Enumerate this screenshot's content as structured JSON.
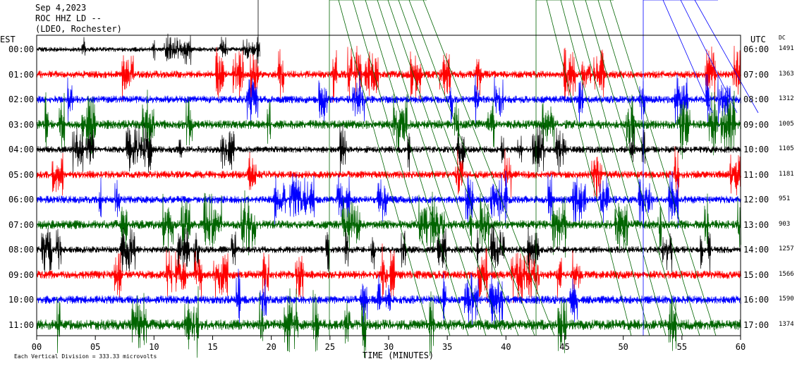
{
  "header": {
    "date": "Sep 4,2023",
    "station": "ROC HHZ LD --",
    "network": "(LDEO, Rochester)"
  },
  "left_axis_label": "EST",
  "right_axis_label": "UTC",
  "dc_label": "DC",
  "footer_note": "Each Vertical Division = 333.33 microvolts",
  "chart_data": {
    "type": "line",
    "title": "",
    "xlabel": "TIME (MINUTES)",
    "xlim": [
      0,
      60
    ],
    "x_ticks": [
      {
        "value": 0,
        "label": "00"
      },
      {
        "value": 5,
        "label": "05"
      },
      {
        "value": 10,
        "label": "10"
      },
      {
        "value": 15,
        "label": "15"
      },
      {
        "value": 20,
        "label": "20"
      },
      {
        "value": 25,
        "label": "25"
      },
      {
        "value": 30,
        "label": "30"
      },
      {
        "value": 35,
        "label": "35"
      },
      {
        "value": 40,
        "label": "40"
      },
      {
        "value": 45,
        "label": "45"
      },
      {
        "value": 50,
        "label": "50"
      },
      {
        "value": 55,
        "label": "55"
      },
      {
        "value": 60,
        "label": "60"
      }
    ],
    "rows": [
      {
        "est": "00:00",
        "utc": "06:00",
        "dc": "1491",
        "color": "#000000",
        "amp": 14,
        "end_minute": 19
      },
      {
        "est": "01:00",
        "utc": "07:00",
        "dc": "1363",
        "color": "#ff0000",
        "amp": 22
      },
      {
        "est": "02:00",
        "utc": "08:00",
        "dc": "1312",
        "color": "#0000ff",
        "amp": 22
      },
      {
        "est": "03:00",
        "utc": "09:00",
        "dc": "1005",
        "color": "#006400",
        "amp": 26
      },
      {
        "est": "04:00",
        "utc": "10:00",
        "dc": "1105",
        "color": "#000000",
        "amp": 20
      },
      {
        "est": "05:00",
        "utc": "11:00",
        "dc": "1181",
        "color": "#ff0000",
        "amp": 22
      },
      {
        "est": "06:00",
        "utc": "12:00",
        "dc": "951",
        "color": "#0000ff",
        "amp": 22
      },
      {
        "est": "07:00",
        "utc": "13:00",
        "dc": "903",
        "color": "#006400",
        "amp": 26
      },
      {
        "est": "08:00",
        "utc": "14:00",
        "dc": "1257",
        "color": "#000000",
        "amp": 20
      },
      {
        "est": "09:00",
        "utc": "15:00",
        "dc": "1566",
        "color": "#ff0000",
        "amp": 24
      },
      {
        "est": "10:00",
        "utc": "16:00",
        "dc": "1590",
        "color": "#0000ff",
        "amp": 24
      },
      {
        "est": "11:00",
        "utc": "17:00",
        "dc": "1374",
        "color": "#006400",
        "amp": 30
      }
    ]
  }
}
